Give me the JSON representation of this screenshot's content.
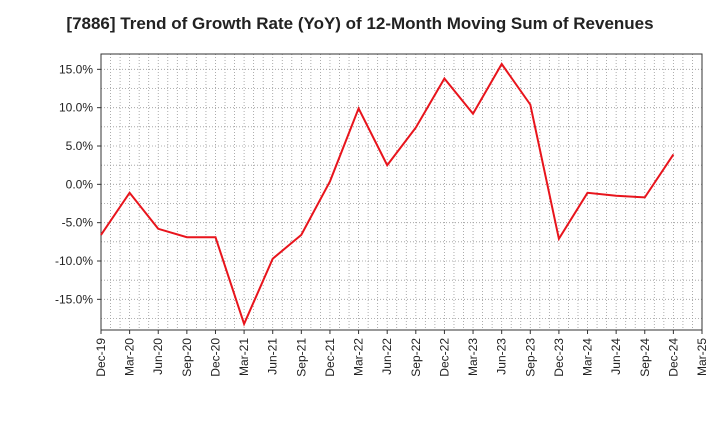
{
  "chart_data": {
    "type": "line",
    "title": "[7886]  Trend of Growth Rate (YoY) of 12-Month Moving Sum of Revenues",
    "xlabel": "",
    "ylabel": "",
    "ylim": [
      -19,
      17
    ],
    "y_ticks": [
      15.0,
      10.0,
      5.0,
      0.0,
      -5.0,
      -10.0,
      -15.0
    ],
    "y_tick_labels": [
      "15.0%",
      "10.0%",
      "5.0%",
      "0.0%",
      "-5.0%",
      "-10.0%",
      "-15.0%"
    ],
    "x_tick_labels": [
      "Dec-19",
      "Mar-20",
      "Jun-20",
      "Sep-20",
      "Dec-20",
      "Mar-21",
      "Jun-21",
      "Sep-21",
      "Dec-21",
      "Mar-22",
      "Jun-22",
      "Sep-22",
      "Dec-22",
      "Mar-23",
      "Jun-23",
      "Sep-23",
      "Dec-23",
      "Mar-24",
      "Jun-24",
      "Sep-24",
      "Dec-24",
      "Mar-25"
    ],
    "grid": true,
    "legend": "none",
    "series": [
      {
        "color": "#e8141c",
        "x": [
          "Dec-19",
          "Mar-20",
          "Jun-20",
          "Sep-20",
          "Dec-20",
          "Mar-21",
          "Jun-21",
          "Sep-21",
          "Dec-21",
          "Mar-22",
          "Jun-22",
          "Sep-22",
          "Dec-22",
          "Mar-23",
          "Jun-23",
          "Sep-23",
          "Dec-23",
          "Mar-24",
          "Jun-24",
          "Sep-24",
          "Dec-24"
        ],
        "values": [
          -6.6,
          -1.1,
          -5.8,
          -6.9,
          -6.9,
          -18.2,
          -9.7,
          -6.6,
          0.4,
          9.9,
          2.5,
          7.4,
          13.8,
          9.2,
          15.7,
          10.4,
          -7.1,
          -1.1,
          -1.5,
          -1.7,
          3.9
        ]
      }
    ]
  }
}
